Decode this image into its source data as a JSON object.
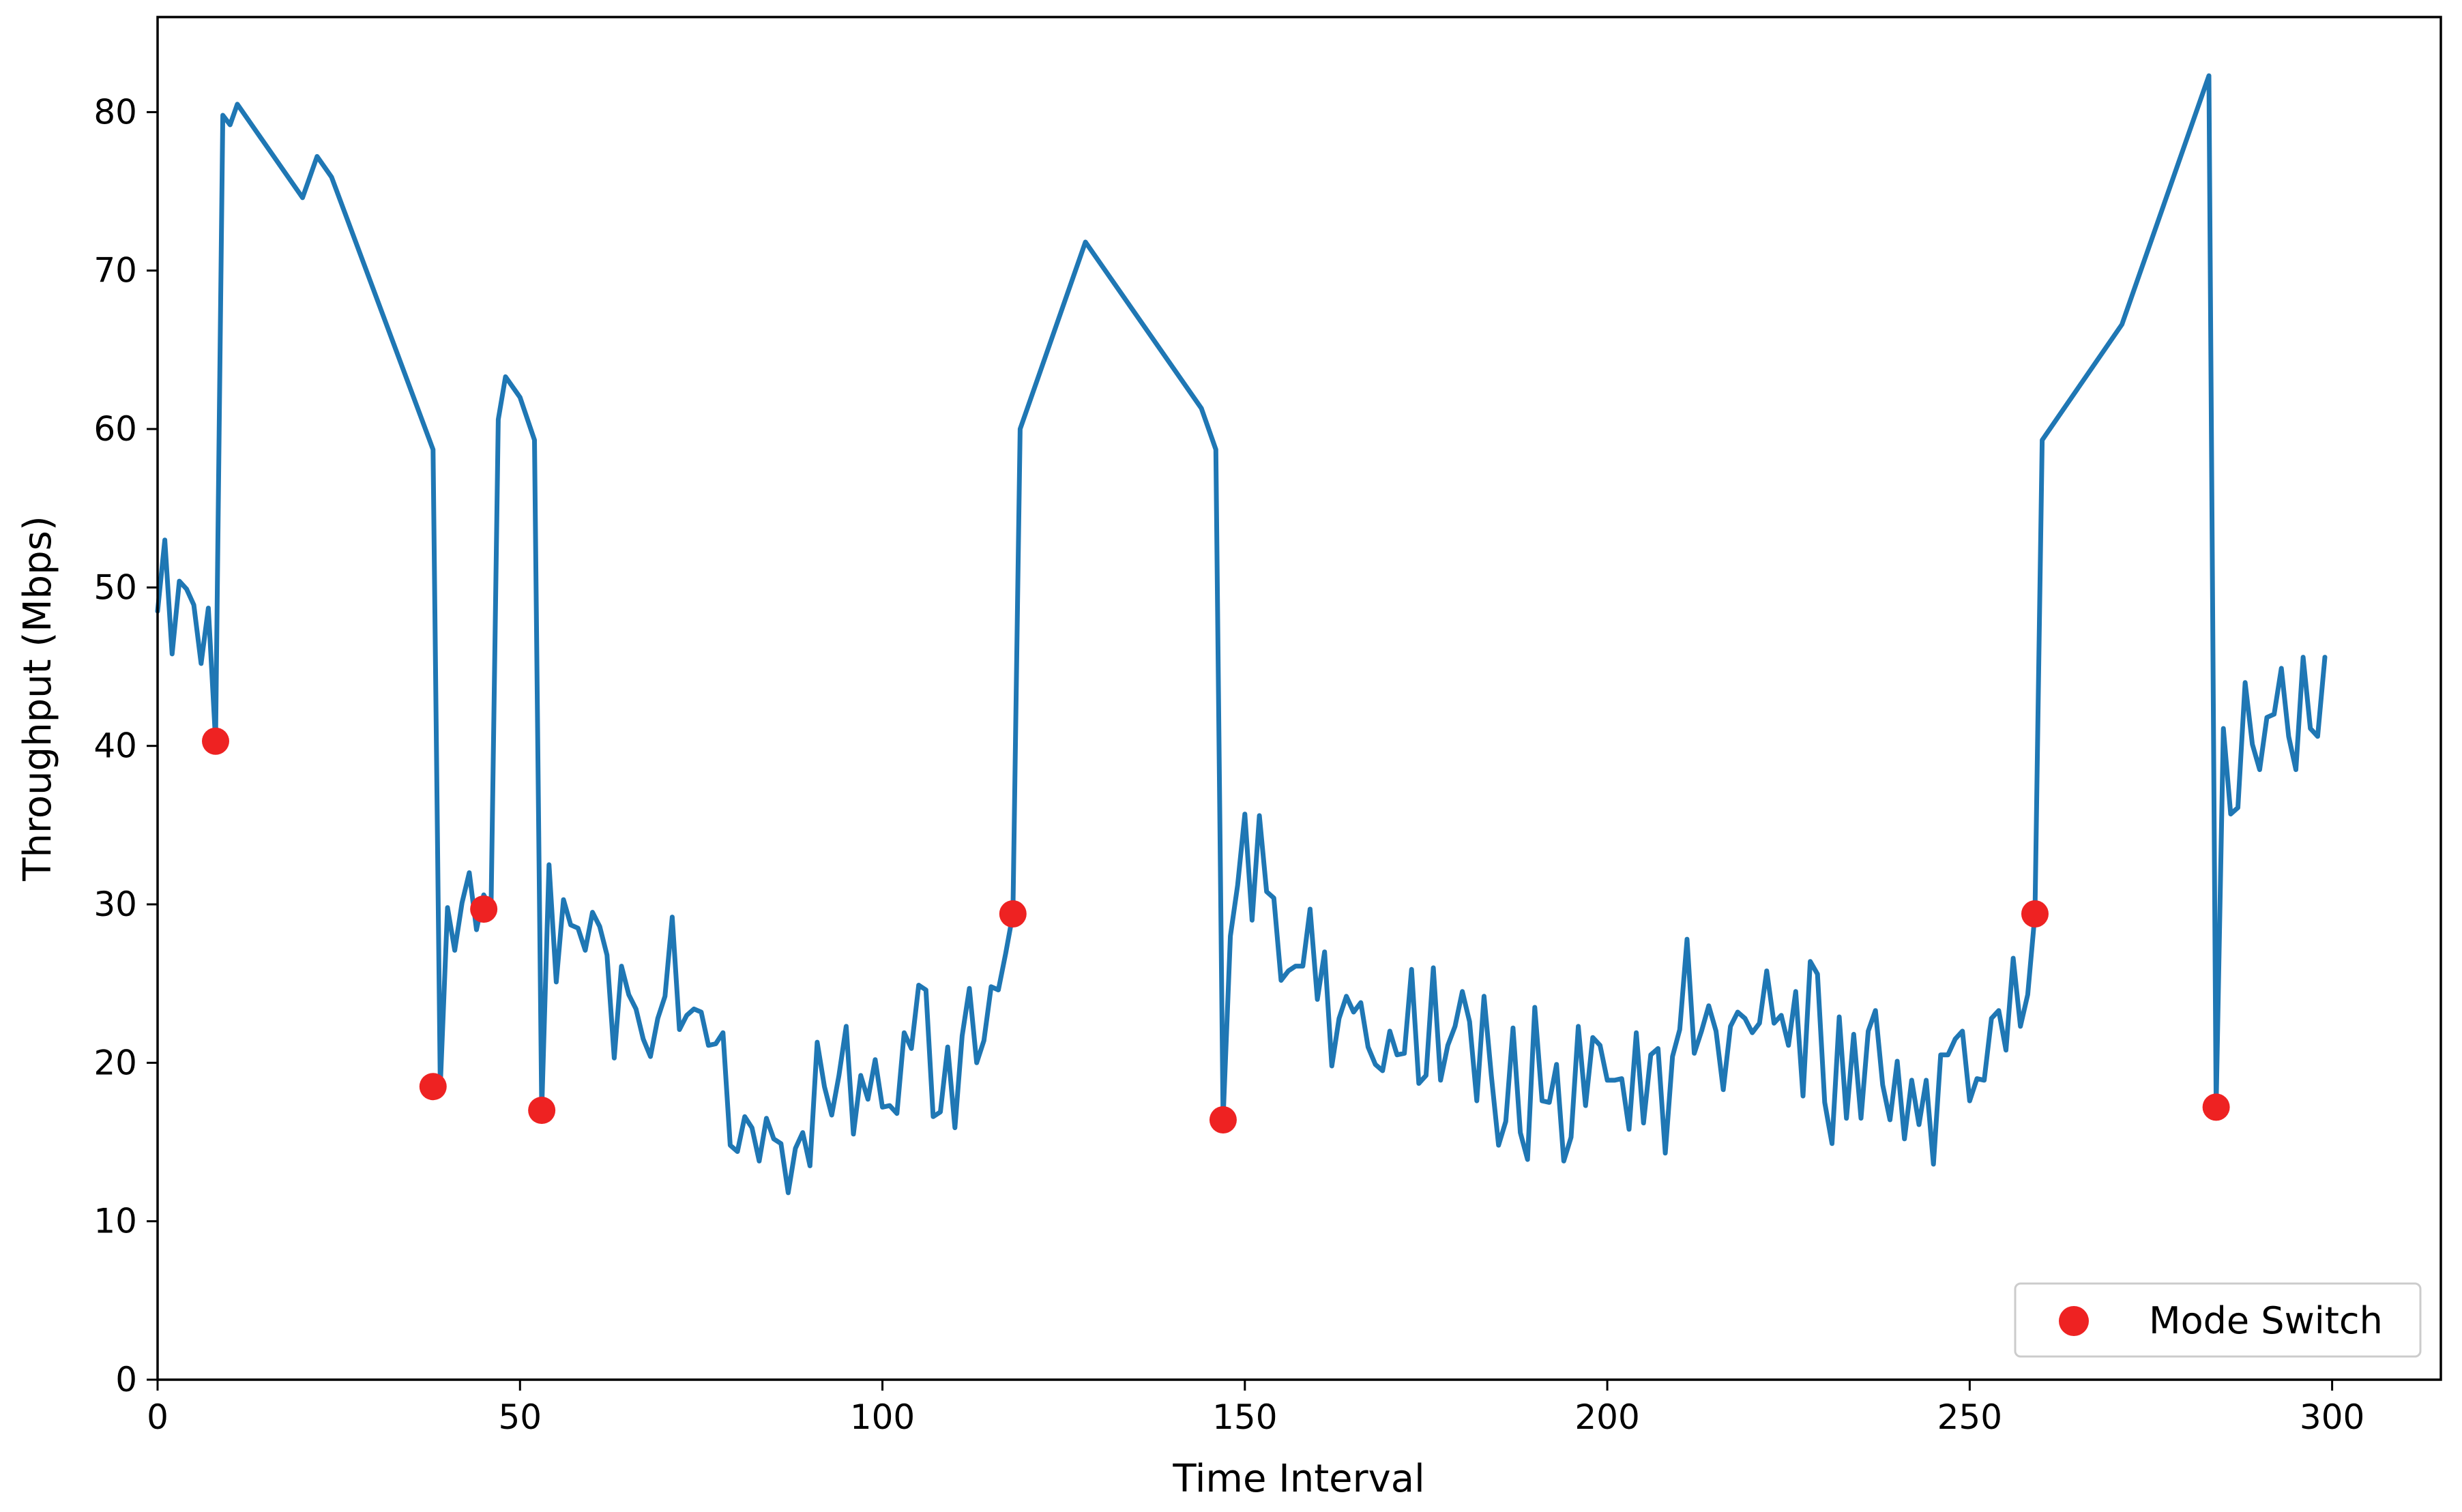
{
  "chart_data": {
    "type": "line",
    "title": "",
    "xlabel": "Time Interval",
    "ylabel": "Throughput (Mbps)",
    "xlim": [
      0,
      315
    ],
    "ylim": [
      0,
      86
    ],
    "xticks": [
      0,
      50,
      100,
      150,
      200,
      250,
      300
    ],
    "yticks": [
      0,
      10,
      20,
      30,
      40,
      50,
      60,
      70,
      80
    ],
    "grid": false,
    "legend_position": "bottom-right",
    "series": [
      {
        "type": "line",
        "color": "#1f77b4",
        "x": [
          0,
          1,
          2,
          3,
          4,
          5,
          6,
          7,
          8,
          9,
          10,
          11,
          20,
          22,
          24,
          38,
          39,
          40,
          41,
          42,
          43,
          44,
          45,
          46,
          47,
          48,
          50,
          52,
          53,
          54,
          55,
          56,
          57,
          58,
          59,
          60,
          61,
          62,
          63,
          64,
          65,
          66,
          67,
          68,
          69,
          70,
          71,
          72,
          73,
          74,
          75,
          76,
          77,
          78,
          79,
          80,
          81,
          82,
          83,
          84,
          85,
          86,
          87,
          88,
          89,
          90,
          91,
          92,
          93,
          94,
          95,
          96,
          97,
          98,
          99,
          100,
          101,
          102,
          103,
          104,
          105,
          106,
          107,
          108,
          109,
          110,
          111,
          112,
          113,
          114,
          115,
          116,
          117,
          118,
          119,
          128,
          144,
          146,
          147,
          148,
          149,
          150,
          151,
          152,
          153,
          154,
          155,
          156,
          157,
          158,
          159,
          160,
          161,
          162,
          163,
          164,
          165,
          166,
          167,
          168,
          169,
          170,
          171,
          172,
          173,
          174,
          175,
          176,
          177,
          178,
          179,
          180,
          181,
          182,
          183,
          184,
          185,
          186,
          187,
          188,
          189,
          190,
          191,
          192,
          193,
          194,
          195,
          196,
          197,
          198,
          199,
          200,
          201,
          202,
          203,
          204,
          205,
          206,
          207,
          208,
          209,
          210,
          211,
          212,
          213,
          214,
          215,
          216,
          217,
          218,
          219,
          220,
          221,
          222,
          223,
          224,
          225,
          226,
          227,
          228,
          229,
          230,
          231,
          232,
          233,
          234,
          235,
          236,
          237,
          238,
          239,
          240,
          241,
          242,
          243,
          244,
          245,
          246,
          247,
          248,
          249,
          250,
          251,
          252,
          253,
          254,
          255,
          256,
          257,
          258,
          259,
          260,
          271,
          283,
          284,
          285,
          286,
          287,
          288,
          289,
          290,
          291,
          292,
          293,
          294,
          295,
          296,
          297,
          298,
          299
        ],
        "values": [
          48.5,
          53.0,
          45.8,
          50.4,
          49.9,
          48.9,
          45.2,
          48.7,
          40.3,
          79.8,
          79.2,
          80.5,
          74.6,
          77.2,
          75.9,
          58.7,
          18.5,
          29.8,
          27.1,
          30.1,
          32.0,
          28.4,
          30.6,
          29.7,
          60.6,
          63.3,
          62.0,
          59.3,
          17.0,
          32.5,
          25.1,
          30.3,
          28.7,
          28.5,
          27.1,
          29.5,
          28.6,
          26.8,
          20.3,
          26.1,
          24.3,
          23.4,
          21.5,
          20.4,
          22.8,
          24.2,
          29.2,
          22.1,
          23.0,
          23.4,
          23.2,
          21.1,
          21.2,
          21.9,
          14.8,
          14.4,
          16.6,
          15.9,
          13.8,
          16.5,
          15.2,
          14.9,
          11.8,
          14.6,
          15.6,
          13.5,
          21.3,
          18.5,
          16.7,
          19.2,
          22.3,
          15.5,
          19.2,
          17.7,
          20.2,
          17.2,
          17.3,
          16.8,
          21.9,
          20.9,
          24.9,
          24.6,
          16.6,
          16.9,
          21.0,
          15.9,
          21.7,
          24.7,
          20.0,
          21.4,
          24.8,
          24.6,
          26.9,
          29.4,
          60.0,
          71.8,
          61.3,
          58.7,
          16.4,
          28.0,
          31.2,
          35.7,
          29.0,
          35.6,
          30.8,
          30.4,
          25.2,
          25.8,
          26.1,
          26.1,
          29.7,
          24.0,
          27.0,
          19.8,
          22.8,
          24.2,
          23.2,
          23.8,
          21.0,
          19.9,
          19.5,
          22.0,
          20.5,
          20.6,
          25.9,
          18.7,
          19.2,
          26.0,
          18.9,
          21.1,
          22.3,
          24.5,
          22.6,
          17.6,
          24.2,
          19.2,
          14.8,
          16.3,
          22.2,
          15.6,
          13.9,
          23.5,
          17.6,
          17.5,
          19.9,
          13.8,
          15.3,
          22.3,
          17.3,
          21.6,
          21.1,
          18.9,
          18.9,
          19.0,
          15.8,
          21.9,
          16.2,
          20.5,
          20.9,
          14.3,
          20.4,
          22.1,
          27.8,
          20.6,
          22.0,
          23.6,
          22.0,
          18.3,
          22.3,
          23.2,
          22.8,
          21.9,
          22.5,
          25.8,
          22.5,
          23.0,
          21.1,
          24.5,
          17.9,
          26.4,
          25.6,
          17.5,
          14.9,
          22.9,
          16.5,
          21.8,
          16.5,
          22.0,
          23.3,
          18.6,
          16.4,
          20.1,
          15.2,
          18.9,
          16.1,
          18.9,
          13.6,
          20.5,
          20.5,
          21.5,
          22.0,
          17.6,
          19.0,
          18.9,
          22.8,
          23.3,
          20.8,
          26.6,
          22.3,
          24.3,
          29.4,
          59.3,
          66.6,
          82.3,
          17.2,
          41.1,
          35.7,
          36.1,
          44.0,
          40.1,
          38.5,
          41.8,
          42.0,
          44.9,
          40.6,
          38.5,
          45.6,
          41.1,
          40.6,
          45.6
        ]
      },
      {
        "type": "scatter",
        "name": "Mode Switch",
        "color": "#ee2222",
        "x": [
          8,
          38,
          45,
          53,
          118,
          147,
          259,
          284
        ],
        "values": [
          40.3,
          18.5,
          29.7,
          17.0,
          29.4,
          16.4,
          29.4,
          17.2
        ]
      }
    ]
  }
}
